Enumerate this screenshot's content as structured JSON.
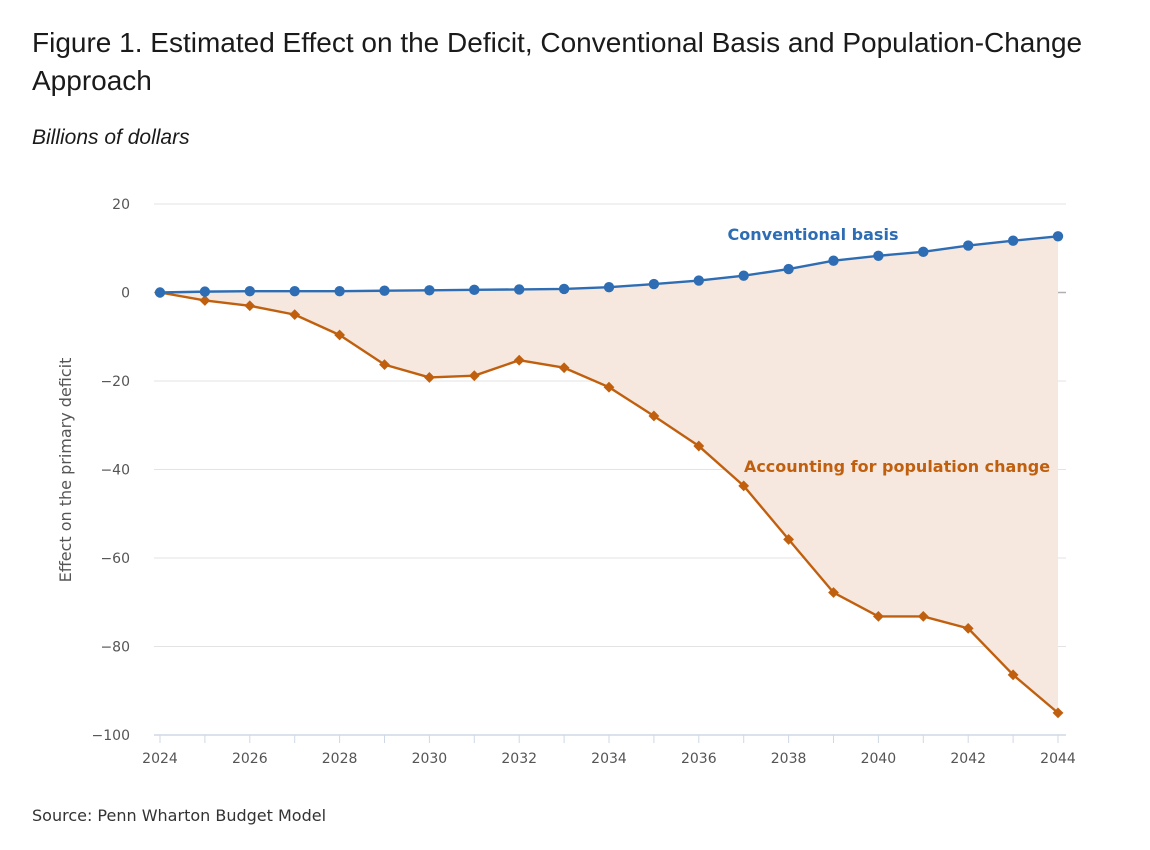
{
  "title": "Figure 1. Estimated Effect on the Deficit, Conventional Basis and Population-Change Approach",
  "subtitle": "Billions of dollars",
  "source": "Source: Penn Wharton Budget Model",
  "colors": {
    "conventional": "#2e6db4",
    "population": "#c0600f",
    "fill": "#f6e8df",
    "grid": "#e3e3e3",
    "zero_line": "#b0b0b0"
  },
  "chart_data": {
    "type": "line",
    "ylabel": "Effect on the primary deficit",
    "ylim": [
      -100,
      20
    ],
    "yticks": [
      20,
      0,
      -20,
      -40,
      -60,
      -80,
      -100
    ],
    "ytick_labels": [
      "20",
      "0",
      "−20",
      "−40",
      "−60",
      "−80",
      "−100"
    ],
    "xlim": [
      2024,
      2044
    ],
    "xticks": [
      2024,
      2026,
      2028,
      2030,
      2032,
      2034,
      2036,
      2038,
      2040,
      2042,
      2044
    ],
    "x": [
      2024,
      2025,
      2026,
      2027,
      2028,
      2029,
      2030,
      2031,
      2032,
      2033,
      2034,
      2035,
      2036,
      2037,
      2038,
      2039,
      2040,
      2041,
      2042,
      2043,
      2044
    ],
    "shaded_between_series": true,
    "series": [
      {
        "name": "Conventional basis",
        "marker": "circle",
        "values": [
          0.0,
          0.2,
          0.3,
          0.3,
          0.3,
          0.4,
          0.5,
          0.6,
          0.7,
          0.8,
          1.2,
          1.9,
          2.7,
          3.8,
          5.3,
          7.2,
          8.3,
          9.2,
          10.6,
          11.7,
          12.7
        ]
      },
      {
        "name": "Accounting for population change",
        "marker": "diamond",
        "values": [
          0.0,
          -1.8,
          -3.0,
          -5.0,
          -9.6,
          -16.3,
          -19.2,
          -18.8,
          -15.3,
          -17.0,
          -21.4,
          -27.9,
          -34.7,
          -43.7,
          -55.8,
          -67.8,
          -73.2,
          -73.2,
          -75.9,
          -86.4,
          -95.0
        ]
      }
    ]
  }
}
